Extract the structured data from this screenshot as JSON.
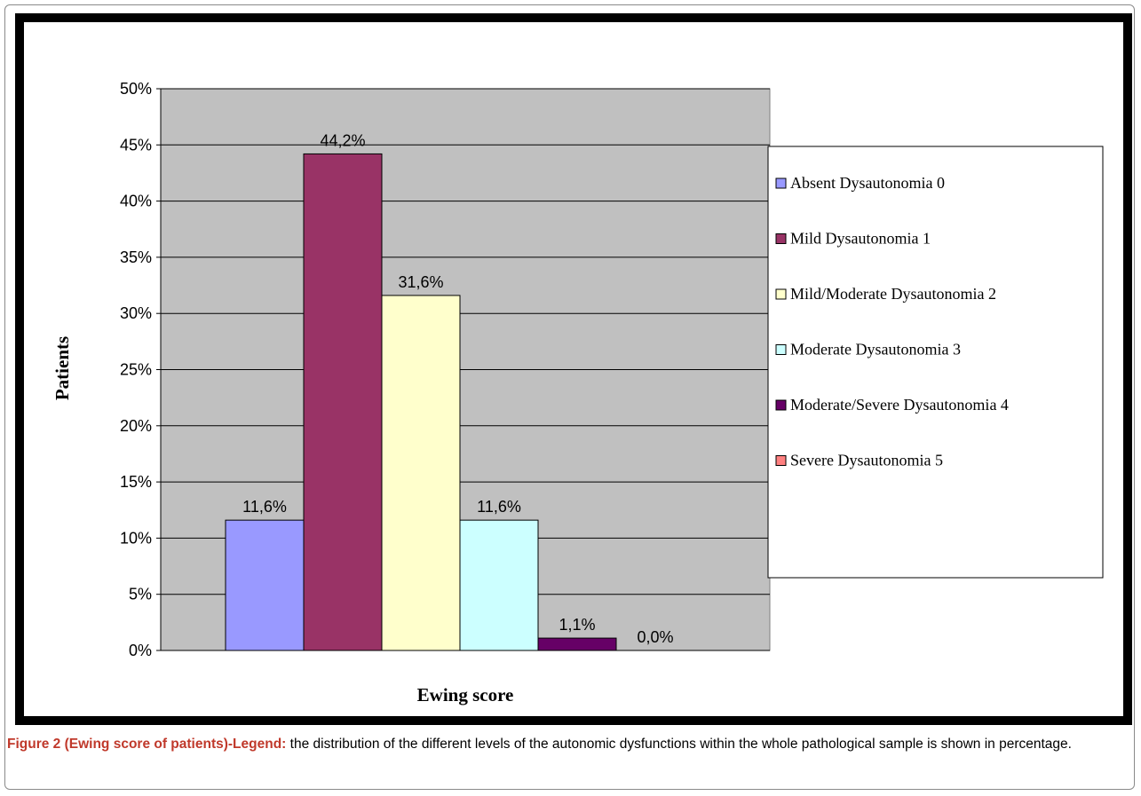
{
  "chart_data": {
    "type": "bar",
    "categories": [
      "Absent Dysautonomia 0",
      "Mild Dysautonomia 1",
      "Mild/Moderate Dysautonomia 2",
      "Moderate Dysautonomia 3",
      "Moderate/Severe Dysautonomia 4",
      "Severe Dysautonomia 5"
    ],
    "values": [
      11.6,
      44.2,
      31.6,
      11.6,
      1.1,
      0.0
    ],
    "value_labels": [
      "11,6%",
      "44,2%",
      "31,6%",
      "11,6%",
      "1,1%",
      "0,0%"
    ],
    "colors": [
      "#9999ff",
      "#993366",
      "#ffffcc",
      "#ccffff",
      "#660066",
      "#ff8080"
    ],
    "ylim": [
      0,
      50
    ],
    "yticks": [
      "0%",
      "5%",
      "10%",
      "15%",
      "20%",
      "25%",
      "30%",
      "35%",
      "40%",
      "45%",
      "50%"
    ],
    "xlabel": "Ewing score",
    "ylabel": "Patients",
    "grid": true,
    "legend_position": "right",
    "plot_background": "#c0c0c0",
    "frame_color": "#000000"
  },
  "caption": {
    "label": "Figure 2 (Ewing score of patients)-Legend:",
    "text": "the distribution of the different levels of the autonomic dysfunctions within the whole pathological sample is shown in percentage."
  }
}
